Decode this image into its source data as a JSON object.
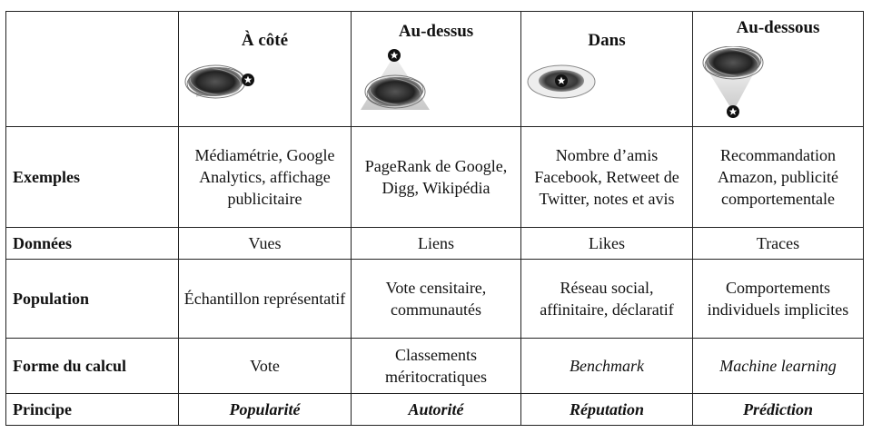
{
  "columns": [
    {
      "label": "À côté",
      "icon": "scribble-beside-star-icon"
    },
    {
      "label": "Au-dessus",
      "icon": "star-above-scribble-icon"
    },
    {
      "label": "Dans",
      "icon": "star-inside-scribble-icon"
    },
    {
      "label": "Au-dessous",
      "icon": "star-below-scribble-icon"
    }
  ],
  "rows": [
    {
      "label": "Exemples",
      "cells": [
        "Médiamétrie, Google Analytics, affichage publicitaire",
        "PageRank de Google, Digg, Wikipédia",
        "Nombre d’amis Facebook, Retweet de Twitter, notes et avis",
        "Recommandation Amazon, publicité comportementale"
      ]
    },
    {
      "label": "Données",
      "cells": [
        "Vues",
        "Liens",
        "Likes",
        "Traces"
      ]
    },
    {
      "label": "Population",
      "cells": [
        "Échantillon représentatif",
        "Vote censitaire, communautés",
        "Réseau social, affinitaire, déclaratif",
        "Comportements individuels implicites"
      ]
    },
    {
      "label": "Forme du calcul",
      "cells": [
        "Vote",
        "Classements méritocratiques",
        "Benchmark",
        "Machine learning"
      ]
    },
    {
      "label": "Principe",
      "cells": [
        "Popularité",
        "Autorité",
        "Réputation",
        "Prédiction"
      ]
    }
  ]
}
